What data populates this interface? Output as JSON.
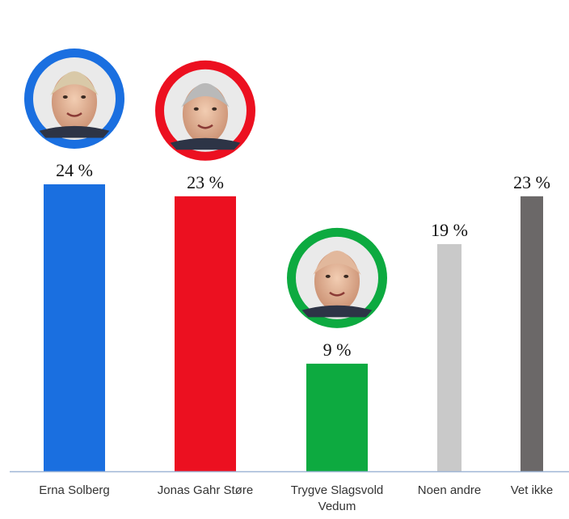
{
  "chart_data": {
    "type": "bar",
    "categories": [
      "Erna Solberg",
      "Jonas Gahr Støre",
      "Trygve Slagsvold Vedum",
      "Noen andre",
      "Vet ikke"
    ],
    "category_lines": [
      [
        "Erna Solberg"
      ],
      [
        "Jonas Gahr Støre"
      ],
      [
        "Trygve Slagsvold",
        "Vedum"
      ],
      [
        "Noen andre"
      ],
      [
        "Vet ikke"
      ]
    ],
    "values": [
      24,
      23,
      9,
      19,
      23
    ],
    "value_labels": [
      "24 %",
      "23 %",
      "9 %",
      "19 %",
      "23 %"
    ],
    "unit": "%",
    "colors": [
      "#1a6fe0",
      "#ec1020",
      "#0daa40",
      "#c9c9c9",
      "#6b6868"
    ],
    "portrait_ring_colors": [
      "#1a6fe0",
      "#ec1020",
      "#0daa40",
      null,
      null
    ],
    "ylim": [
      0,
      24
    ],
    "grid": false,
    "legend": "none",
    "title": "",
    "xlabel": "",
    "ylabel": ""
  },
  "colors": {
    "baseline": "#9fb6d6",
    "background": "#ffffff"
  }
}
